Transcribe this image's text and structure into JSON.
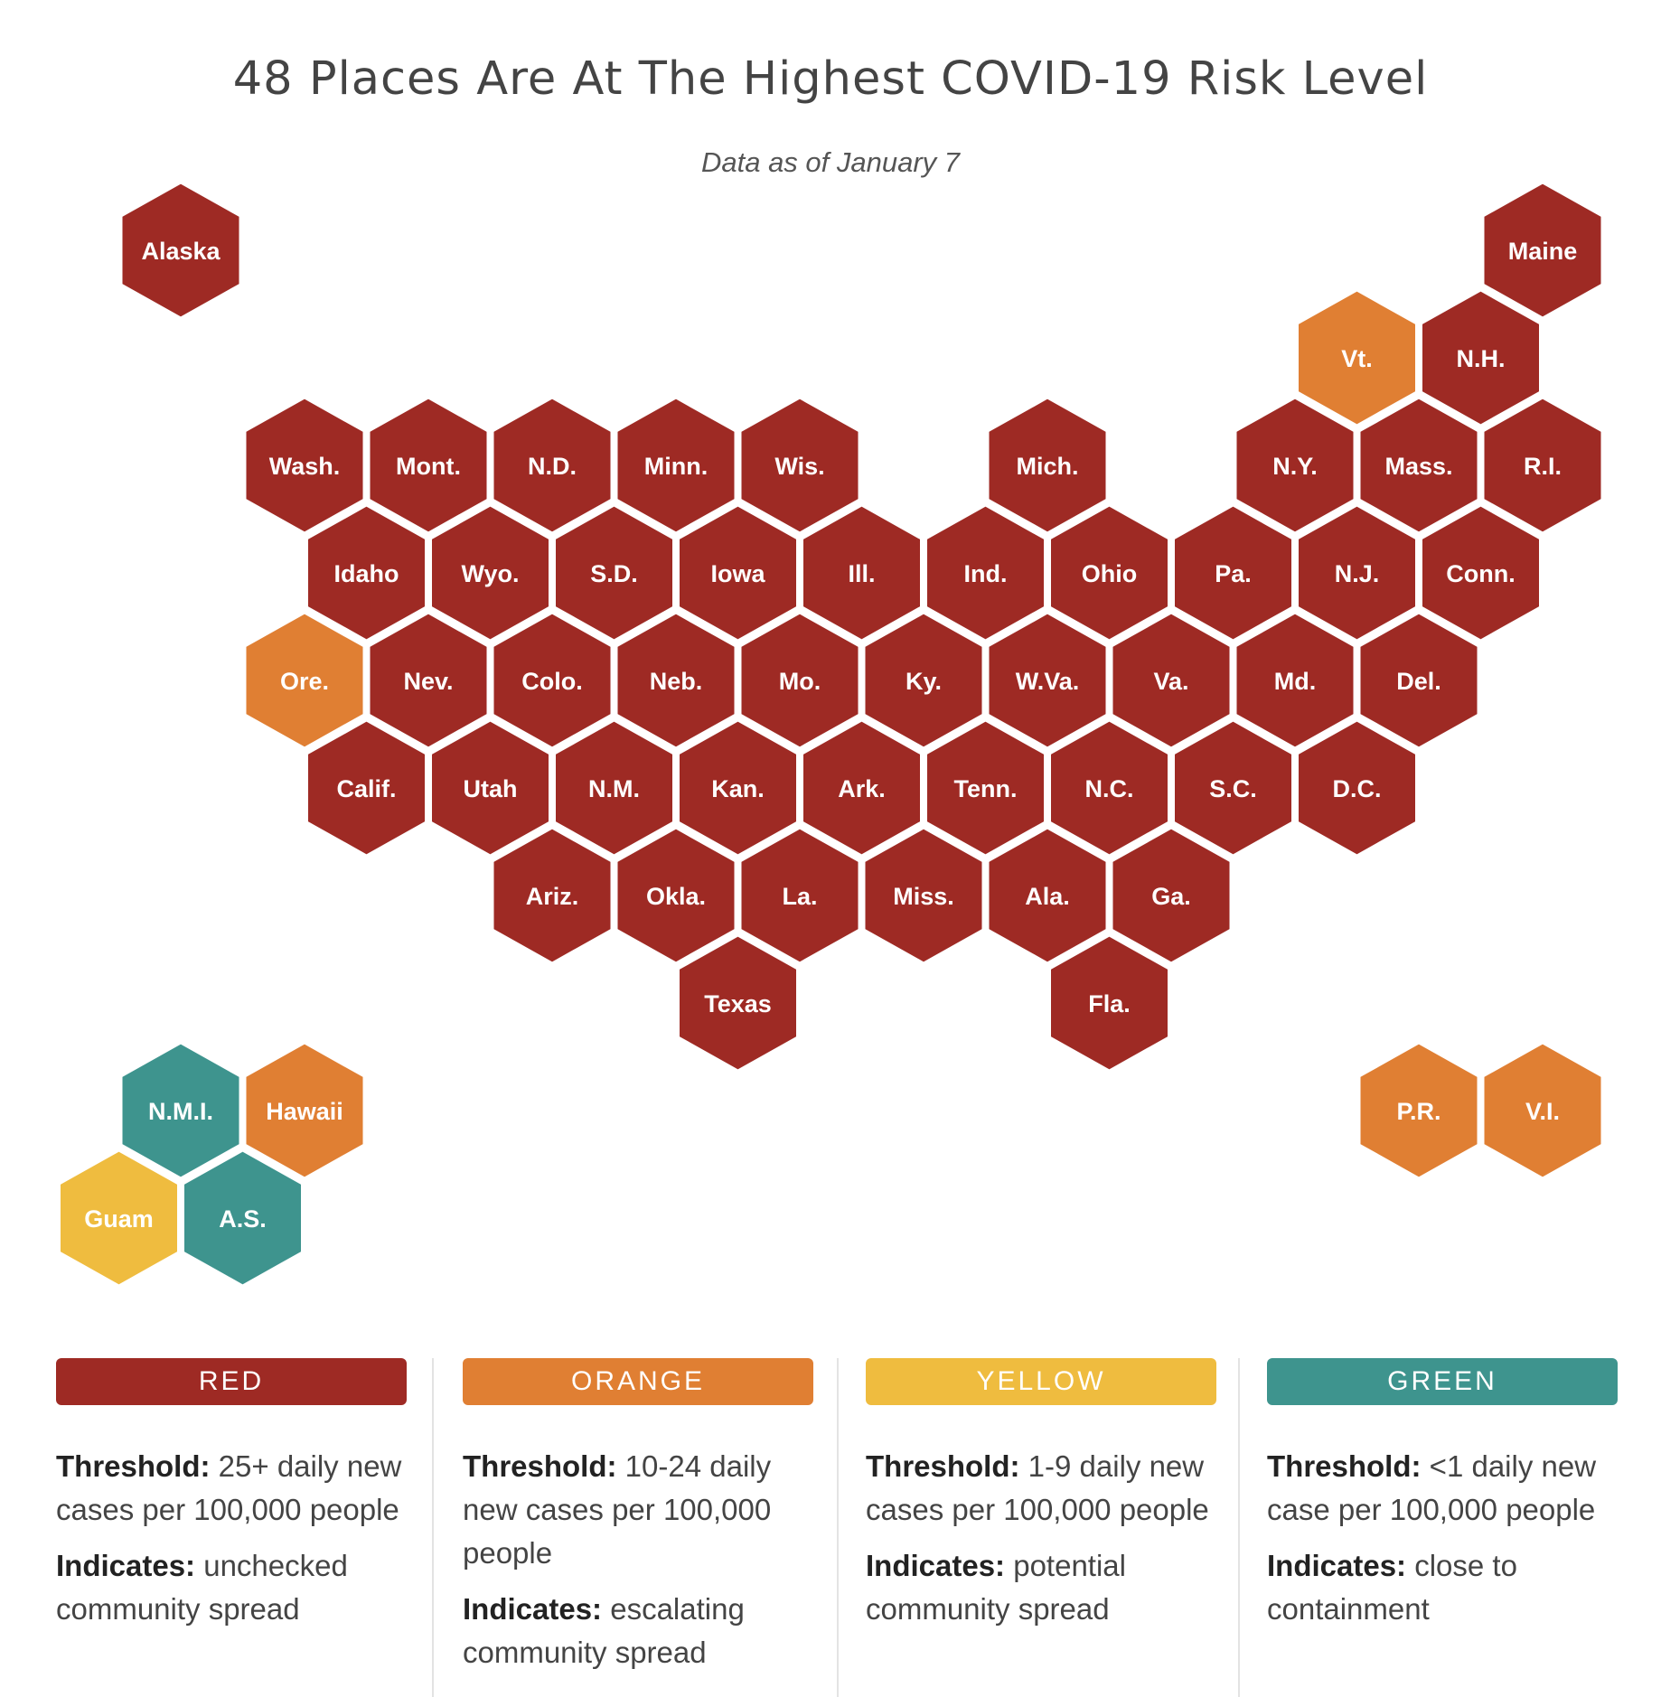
{
  "title": "48 Places Are At The Highest COVID-19 Risk Level",
  "subtitle": "Data as of January 7",
  "colors": {
    "red": "#9e2a24",
    "orange": "#e07f33",
    "yellow": "#efbc3f",
    "green": "#3e948e"
  },
  "hexes": [
    {
      "label": "Alaska",
      "level": "red",
      "col": 0,
      "row": 0
    },
    {
      "label": "Maine",
      "level": "red",
      "col": 11,
      "row": 0
    },
    {
      "label": "Vt.",
      "level": "orange",
      "col": 9.5,
      "row": 1
    },
    {
      "label": "N.H.",
      "level": "red",
      "col": 10.5,
      "row": 1
    },
    {
      "label": "Wash.",
      "level": "red",
      "col": 1,
      "row": 2
    },
    {
      "label": "Mont.",
      "level": "red",
      "col": 2,
      "row": 2
    },
    {
      "label": "N.D.",
      "level": "red",
      "col": 3,
      "row": 2
    },
    {
      "label": "Minn.",
      "level": "red",
      "col": 4,
      "row": 2
    },
    {
      "label": "Wis.",
      "level": "red",
      "col": 5,
      "row": 2
    },
    {
      "label": "Mich.",
      "level": "red",
      "col": 7,
      "row": 2
    },
    {
      "label": "N.Y.",
      "level": "red",
      "col": 9,
      "row": 2
    },
    {
      "label": "Mass.",
      "level": "red",
      "col": 10,
      "row": 2
    },
    {
      "label": "R.I.",
      "level": "red",
      "col": 11,
      "row": 2
    },
    {
      "label": "Idaho",
      "level": "red",
      "col": 1.5,
      "row": 3
    },
    {
      "label": "Wyo.",
      "level": "red",
      "col": 2.5,
      "row": 3
    },
    {
      "label": "S.D.",
      "level": "red",
      "col": 3.5,
      "row": 3
    },
    {
      "label": "Iowa",
      "level": "red",
      "col": 4.5,
      "row": 3
    },
    {
      "label": "Ill.",
      "level": "red",
      "col": 5.5,
      "row": 3
    },
    {
      "label": "Ind.",
      "level": "red",
      "col": 6.5,
      "row": 3
    },
    {
      "label": "Ohio",
      "level": "red",
      "col": 7.5,
      "row": 3
    },
    {
      "label": "Pa.",
      "level": "red",
      "col": 8.5,
      "row": 3
    },
    {
      "label": "N.J.",
      "level": "red",
      "col": 9.5,
      "row": 3
    },
    {
      "label": "Conn.",
      "level": "red",
      "col": 10.5,
      "row": 3
    },
    {
      "label": "Ore.",
      "level": "orange",
      "col": 1,
      "row": 4
    },
    {
      "label": "Nev.",
      "level": "red",
      "col": 2,
      "row": 4
    },
    {
      "label": "Colo.",
      "level": "red",
      "col": 3,
      "row": 4
    },
    {
      "label": "Neb.",
      "level": "red",
      "col": 4,
      "row": 4
    },
    {
      "label": "Mo.",
      "level": "red",
      "col": 5,
      "row": 4
    },
    {
      "label": "Ky.",
      "level": "red",
      "col": 6,
      "row": 4
    },
    {
      "label": "W.Va.",
      "level": "red",
      "col": 7,
      "row": 4
    },
    {
      "label": "Va.",
      "level": "red",
      "col": 8,
      "row": 4
    },
    {
      "label": "Md.",
      "level": "red",
      "col": 9,
      "row": 4
    },
    {
      "label": "Del.",
      "level": "red",
      "col": 10,
      "row": 4
    },
    {
      "label": "Calif.",
      "level": "red",
      "col": 1.5,
      "row": 5
    },
    {
      "label": "Utah",
      "level": "red",
      "col": 2.5,
      "row": 5
    },
    {
      "label": "N.M.",
      "level": "red",
      "col": 3.5,
      "row": 5
    },
    {
      "label": "Kan.",
      "level": "red",
      "col": 4.5,
      "row": 5
    },
    {
      "label": "Ark.",
      "level": "red",
      "col": 5.5,
      "row": 5
    },
    {
      "label": "Tenn.",
      "level": "red",
      "col": 6.5,
      "row": 5
    },
    {
      "label": "N.C.",
      "level": "red",
      "col": 7.5,
      "row": 5
    },
    {
      "label": "S.C.",
      "level": "red",
      "col": 8.5,
      "row": 5
    },
    {
      "label": "D.C.",
      "level": "red",
      "col": 9.5,
      "row": 5
    },
    {
      "label": "Ariz.",
      "level": "red",
      "col": 3,
      "row": 6
    },
    {
      "label": "Okla.",
      "level": "red",
      "col": 4,
      "row": 6
    },
    {
      "label": "La.",
      "level": "red",
      "col": 5,
      "row": 6
    },
    {
      "label": "Miss.",
      "level": "red",
      "col": 6,
      "row": 6
    },
    {
      "label": "Ala.",
      "level": "red",
      "col": 7,
      "row": 6
    },
    {
      "label": "Ga.",
      "level": "red",
      "col": 8,
      "row": 6
    },
    {
      "label": "Texas",
      "level": "red",
      "col": 4.5,
      "row": 7
    },
    {
      "label": "Fla.",
      "level": "red",
      "col": 7.5,
      "row": 7
    },
    {
      "label": "N.M.I.",
      "level": "green",
      "col": 0,
      "row": 8
    },
    {
      "label": "Hawaii",
      "level": "orange",
      "col": 1,
      "row": 8
    },
    {
      "label": "P.R.",
      "level": "orange",
      "col": 10,
      "row": 8
    },
    {
      "label": "V.I.",
      "level": "orange",
      "col": 11,
      "row": 8
    },
    {
      "label": "Guam",
      "level": "yellow",
      "col": -0.5,
      "row": 9
    },
    {
      "label": "A.S.",
      "level": "green",
      "col": 0.5,
      "row": 9
    }
  ],
  "legend": [
    {
      "name": "RED",
      "level": "red",
      "threshold_label": "Threshold:",
      "threshold_text": "25+ daily new cases per 100,000 people",
      "indicates_label": "Indicates:",
      "indicates_text": "unchecked community spread"
    },
    {
      "name": "ORANGE",
      "level": "orange",
      "threshold_label": "Threshold:",
      "threshold_text": "10-24 daily new cases per 100,000 people",
      "indicates_label": "Indicates:",
      "indicates_text": "escalating community spread"
    },
    {
      "name": "YELLOW",
      "level": "yellow",
      "threshold_label": "Threshold:",
      "threshold_text": "1-9 daily new cases per 100,000 people",
      "indicates_label": "Indicates:",
      "indicates_text": "potential community spread"
    },
    {
      "name": "GREEN",
      "level": "green",
      "threshold_label": "Threshold:",
      "threshold_text": "<1 daily new case per 100,000 people",
      "indicates_label": "Indicates:",
      "indicates_text": "close to containment"
    }
  ]
}
